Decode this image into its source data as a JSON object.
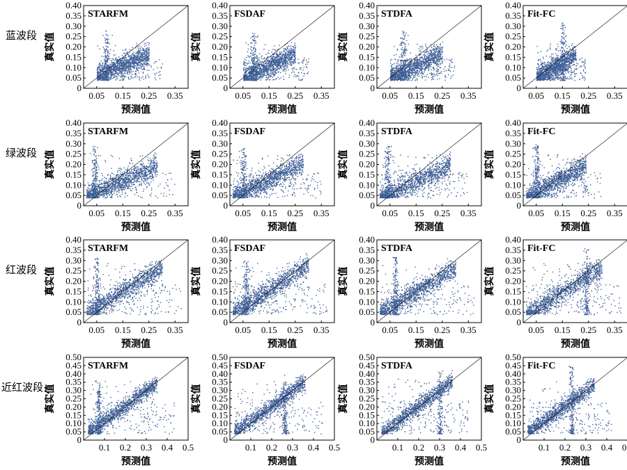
{
  "figure": {
    "row_labels": [
      "蓝波段",
      "绿波段",
      "红波段",
      "近红波段"
    ],
    "methods": [
      "STARFM",
      "FSDAF",
      "STDFA",
      "Fit-FC"
    ],
    "xlabel": "预测值",
    "ylabel": "真实值",
    "point_color": "#3f5f97"
  },
  "chart_data": [
    {
      "type": "scatter",
      "row": 0,
      "col": 0,
      "band": "蓝波段",
      "method": "STARFM",
      "xlabel": "预测值",
      "ylabel": "真实值",
      "xlim": [
        0.0,
        0.4
      ],
      "ylim": [
        0.0,
        0.4
      ],
      "xticks": [
        "0.05",
        "0.15",
        "0.25",
        "0.35"
      ],
      "yticks": [
        "0",
        "0.05",
        "0.10",
        "0.15",
        "0.20",
        "0.25",
        "0.30",
        "0.35",
        "0.40"
      ],
      "cloud": {
        "x": [
          0.05,
          0.25
        ],
        "y": [
          0.04,
          0.22
        ],
        "slope": 0.55,
        "intercept": 0.03,
        "spike_x": 0.085,
        "spike_top": 0.28
      }
    },
    {
      "type": "scatter",
      "row": 0,
      "col": 1,
      "band": "蓝波段",
      "method": "FSDAF",
      "xlabel": "预测值",
      "ylabel": "真实值",
      "xlim": [
        0.0,
        0.4
      ],
      "ylim": [
        0.0,
        0.4
      ],
      "xticks": [
        "0.05",
        "0.15",
        "0.25",
        "0.35"
      ],
      "yticks": [
        "0",
        "0.05",
        "0.10",
        "0.15",
        "0.20",
        "0.25",
        "0.30",
        "0.35",
        "0.40"
      ],
      "cloud": {
        "x": [
          0.05,
          0.25
        ],
        "y": [
          0.04,
          0.23
        ],
        "slope": 0.6,
        "intercept": 0.02,
        "spike_x": 0.09,
        "spike_top": 0.27
      }
    },
    {
      "type": "scatter",
      "row": 0,
      "col": 2,
      "band": "蓝波段",
      "method": "STDFA",
      "xlabel": "预测值",
      "ylabel": "真实值",
      "xlim": [
        0.0,
        0.4
      ],
      "ylim": [
        0.0,
        0.4
      ],
      "xticks": [
        "0.05",
        "0.15",
        "0.25",
        "0.35"
      ],
      "yticks": [
        "0",
        "0.05",
        "0.10",
        "0.15",
        "0.20",
        "0.25",
        "0.30",
        "0.35",
        "0.40"
      ],
      "cloud": {
        "x": [
          0.05,
          0.25
        ],
        "y": [
          0.04,
          0.22
        ],
        "slope": 0.6,
        "intercept": 0.02,
        "spike_x": 0.1,
        "spike_top": 0.28
      }
    },
    {
      "type": "scatter",
      "row": 0,
      "col": 3,
      "band": "蓝波段",
      "method": "Fit-FC",
      "xlabel": "预测值",
      "ylabel": "真实值",
      "xlim": [
        0.0,
        0.4
      ],
      "ylim": [
        0.0,
        0.4
      ],
      "xticks": [
        "0.05",
        "0.15",
        "0.25",
        "0.35"
      ],
      "yticks": [
        "0",
        "0.05",
        "0.10",
        "0.15",
        "0.20",
        "0.25",
        "0.30",
        "0.35",
        "0.40"
      ],
      "cloud": {
        "x": [
          0.05,
          0.2
        ],
        "y": [
          0.04,
          0.22
        ],
        "slope": 0.75,
        "intercept": 0.01,
        "spike_x": 0.15,
        "spike_top": 0.32
      }
    },
    {
      "type": "scatter",
      "row": 1,
      "col": 0,
      "band": "绿波段",
      "method": "STARFM",
      "xlabel": "预测值",
      "ylabel": "真实值",
      "xlim": [
        0.0,
        0.4
      ],
      "ylim": [
        0.0,
        0.4
      ],
      "xticks": [
        "0.05",
        "0.15",
        "0.25",
        "0.35"
      ],
      "yticks": [
        "0",
        "0.05",
        "0.10",
        "0.15",
        "0.20",
        "0.25",
        "0.30",
        "0.35",
        "0.40"
      ],
      "cloud": {
        "x": [
          0.01,
          0.28
        ],
        "y": [
          0.04,
          0.25
        ],
        "slope": 0.55,
        "intercept": 0.04,
        "spike_x": 0.04,
        "spike_top": 0.29
      }
    },
    {
      "type": "scatter",
      "row": 1,
      "col": 1,
      "band": "绿波段",
      "method": "FSDAF",
      "xlabel": "预测值",
      "ylabel": "真实值",
      "xlim": [
        0.0,
        0.4
      ],
      "ylim": [
        0.0,
        0.4
      ],
      "xticks": [
        "0.05",
        "0.15",
        "0.25",
        "0.35"
      ],
      "yticks": [
        "0",
        "0.05",
        "0.10",
        "0.15",
        "0.20",
        "0.25",
        "0.30",
        "0.35",
        "0.40"
      ],
      "cloud": {
        "x": [
          0.01,
          0.28
        ],
        "y": [
          0.04,
          0.25
        ],
        "slope": 0.6,
        "intercept": 0.04,
        "spike_x": 0.05,
        "spike_top": 0.28
      }
    },
    {
      "type": "scatter",
      "row": 1,
      "col": 2,
      "band": "绿波段",
      "method": "STDFA",
      "xlabel": "预测值",
      "ylabel": "真实值",
      "xlim": [
        0.0,
        0.4
      ],
      "ylim": [
        0.0,
        0.4
      ],
      "xticks": [
        "0.05",
        "0.15",
        "0.25",
        "0.35"
      ],
      "yticks": [
        "0",
        "0.05",
        "0.10",
        "0.15",
        "0.20",
        "0.25",
        "0.30",
        "0.35",
        "0.40"
      ],
      "cloud": {
        "x": [
          0.01,
          0.28
        ],
        "y": [
          0.04,
          0.25
        ],
        "slope": 0.6,
        "intercept": 0.03,
        "spike_x": 0.04,
        "spike_top": 0.29
      }
    },
    {
      "type": "scatter",
      "row": 1,
      "col": 3,
      "band": "绿波段",
      "method": "Fit-FC",
      "xlabel": "预测值",
      "ylabel": "真实值",
      "xlim": [
        0.0,
        0.4
      ],
      "ylim": [
        0.0,
        0.4
      ],
      "xticks": [
        "0.05",
        "0.15",
        "0.25",
        "0.35"
      ],
      "yticks": [
        "0",
        "0.05",
        "0.10",
        "0.15",
        "0.20",
        "0.25",
        "0.30",
        "0.35",
        "0.40"
      ],
      "cloud": {
        "x": [
          0.01,
          0.24
        ],
        "y": [
          0.04,
          0.25
        ],
        "slope": 0.7,
        "intercept": 0.03,
        "spike_x": 0.05,
        "spike_top": 0.3
      }
    },
    {
      "type": "scatter",
      "row": 2,
      "col": 0,
      "band": "红波段",
      "method": "STARFM",
      "xlabel": "预测值",
      "ylabel": "真实值",
      "xlim": [
        0.0,
        0.4
      ],
      "ylim": [
        0.0,
        0.4
      ],
      "xticks": [
        "0.05",
        "0.15",
        "0.25",
        "0.35"
      ],
      "yticks": [
        "0",
        "0.05",
        "0.10",
        "0.15",
        "0.20",
        "0.25",
        "0.30",
        "0.35",
        "0.40"
      ],
      "cloud": {
        "x": [
          0.01,
          0.3
        ],
        "y": [
          0.04,
          0.29
        ],
        "slope": 0.75,
        "intercept": 0.04,
        "spike_x": 0.05,
        "spike_top": 0.32
      }
    },
    {
      "type": "scatter",
      "row": 2,
      "col": 1,
      "band": "红波段",
      "method": "FSDAF",
      "xlabel": "预测值",
      "ylabel": "真实值",
      "xlim": [
        0.0,
        0.4
      ],
      "ylim": [
        0.0,
        0.4
      ],
      "xticks": [
        "0.05",
        "0.15",
        "0.25",
        "0.35"
      ],
      "yticks": [
        "0",
        "0.05",
        "0.10",
        "0.15",
        "0.20",
        "0.25",
        "0.30",
        "0.35",
        "0.40"
      ],
      "cloud": {
        "x": [
          0.01,
          0.3
        ],
        "y": [
          0.04,
          0.29
        ],
        "slope": 0.8,
        "intercept": 0.04,
        "spike_x": 0.06,
        "spike_top": 0.3
      }
    },
    {
      "type": "scatter",
      "row": 2,
      "col": 2,
      "band": "红波段",
      "method": "STDFA",
      "xlabel": "预测值",
      "ylabel": "真实值",
      "xlim": [
        0.0,
        0.4
      ],
      "ylim": [
        0.0,
        0.4
      ],
      "xticks": [
        "0.05",
        "0.15",
        "0.25",
        "0.35"
      ],
      "yticks": [
        "0",
        "0.05",
        "0.10",
        "0.15",
        "0.20",
        "0.25",
        "0.30",
        "0.35",
        "0.40"
      ],
      "cloud": {
        "x": [
          0.01,
          0.3
        ],
        "y": [
          0.04,
          0.29
        ],
        "slope": 0.75,
        "intercept": 0.04,
        "spike_x": 0.07,
        "spike_top": 0.32
      }
    },
    {
      "type": "scatter",
      "row": 2,
      "col": 3,
      "band": "红波段",
      "method": "Fit-FC",
      "xlabel": "预测值",
      "ylabel": "真实值",
      "xlim": [
        0.0,
        0.4
      ],
      "ylim": [
        0.0,
        0.4
      ],
      "xticks": [
        "0.05",
        "0.15",
        "0.25",
        "0.35"
      ],
      "yticks": [
        "0",
        "0.05",
        "0.10",
        "0.15",
        "0.20",
        "0.25",
        "0.30",
        "0.35",
        "0.40"
      ],
      "cloud": {
        "x": [
          0.01,
          0.3
        ],
        "y": [
          0.04,
          0.29
        ],
        "slope": 0.8,
        "intercept": 0.03,
        "spike_x": 0.24,
        "spike_top": 0.36
      }
    },
    {
      "type": "scatter",
      "row": 3,
      "col": 0,
      "band": "近红波段",
      "method": "STARFM",
      "xlabel": "预测值",
      "ylabel": "真实值",
      "xlim": [
        0.0,
        0.5
      ],
      "ylim": [
        0.0,
        0.5
      ],
      "xticks": [
        "0.1",
        "0.2",
        "0.3",
        "0.4",
        "0.5"
      ],
      "yticks": [
        "0",
        "0.05",
        "0.10",
        "0.15",
        "0.20",
        "0.25",
        "0.30",
        "0.35",
        "0.40",
        "0.45",
        "0.50"
      ],
      "cloud": {
        "x": [
          0.02,
          0.35
        ],
        "y": [
          0.04,
          0.36
        ],
        "slope": 0.9,
        "intercept": 0.03,
        "spike_x": 0.07,
        "spike_top": 0.36
      }
    },
    {
      "type": "scatter",
      "row": 3,
      "col": 1,
      "band": "近红波段",
      "method": "FSDAF",
      "xlabel": "预测值",
      "ylabel": "真实值",
      "xlim": [
        0.0,
        0.5
      ],
      "ylim": [
        0.0,
        0.5
      ],
      "xticks": [
        "0.1",
        "0.2",
        "0.3",
        "0.4",
        "0.5"
      ],
      "yticks": [
        "0",
        "0.05",
        "0.10",
        "0.15",
        "0.20",
        "0.25",
        "0.30",
        "0.35",
        "0.40",
        "0.45",
        "0.50"
      ],
      "cloud": {
        "x": [
          0.02,
          0.36
        ],
        "y": [
          0.04,
          0.36
        ],
        "slope": 0.9,
        "intercept": 0.03,
        "spike_x": 0.26,
        "spike_top": 0.4
      }
    },
    {
      "type": "scatter",
      "row": 3,
      "col": 2,
      "band": "近红波段",
      "method": "STDFA",
      "xlabel": "预测值",
      "ylabel": "真实值",
      "xlim": [
        0.0,
        0.5
      ],
      "ylim": [
        0.0,
        0.5
      ],
      "xticks": [
        "0.1",
        "0.2",
        "0.3",
        "0.4",
        "0.5"
      ],
      "yticks": [
        "0",
        "0.05",
        "0.10",
        "0.15",
        "0.20",
        "0.25",
        "0.30",
        "0.35",
        "0.40",
        "0.45",
        "0.50"
      ],
      "cloud": {
        "x": [
          0.02,
          0.36
        ],
        "y": [
          0.04,
          0.38
        ],
        "slope": 0.95,
        "intercept": 0.02,
        "spike_x": 0.3,
        "spike_top": 0.42
      }
    },
    {
      "type": "scatter",
      "row": 3,
      "col": 3,
      "band": "近红波段",
      "method": "Fit-FC",
      "xlabel": "预测值",
      "ylabel": "真实值",
      "xlim": [
        0.0,
        0.5
      ],
      "ylim": [
        0.0,
        0.5
      ],
      "xticks": [
        "0.1",
        "0.2",
        "0.3",
        "0.4",
        "0.5"
      ],
      "yticks": [
        "0",
        "0.05",
        "0.10",
        "0.15",
        "0.20",
        "0.25",
        "0.30",
        "0.35",
        "0.40",
        "0.45",
        "0.50"
      ],
      "cloud": {
        "x": [
          0.02,
          0.34
        ],
        "y": [
          0.04,
          0.36
        ],
        "slope": 0.9,
        "intercept": 0.03,
        "spike_x": 0.23,
        "spike_top": 0.45
      }
    }
  ]
}
